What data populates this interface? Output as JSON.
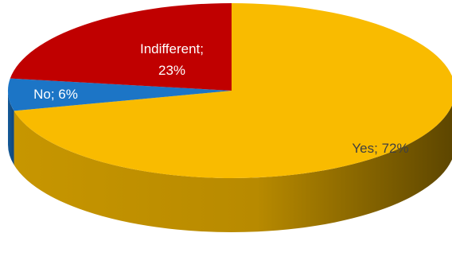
{
  "chart_data": {
    "type": "pie",
    "style": "3d",
    "title": "",
    "slices": [
      {
        "label": "Yes",
        "value": 72,
        "text": "Yes; 72%",
        "color": "#F9BB00",
        "label_color": "#404040"
      },
      {
        "label": "No",
        "value": 6,
        "text": "No; 6%",
        "color": "#1C75C6",
        "label_color": "#ffffff"
      },
      {
        "label": "Indifferent",
        "value": 23,
        "text_lines": [
          "Indifferent;",
          "23%"
        ],
        "color": "#C00000",
        "label_color": "#ffffff"
      }
    ],
    "legend": "none",
    "data_labels": "category; percentage"
  }
}
